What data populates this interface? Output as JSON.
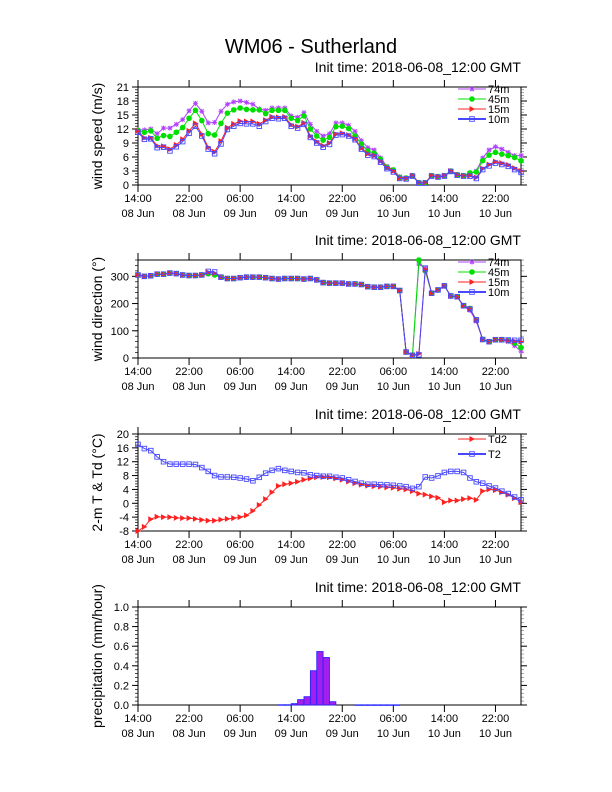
{
  "title": "WM06 - Sutherland",
  "times": [
    "2018-06-08 14:00",
    "2018-06-08 15:00",
    "2018-06-08 16:00",
    "2018-06-08 17:00",
    "2018-06-08 18:00",
    "2018-06-08 19:00",
    "2018-06-08 20:00",
    "2018-06-08 21:00",
    "2018-06-08 22:00",
    "2018-06-08 23:00",
    "2018-06-09 00:00",
    "2018-06-09 01:00",
    "2018-06-09 02:00",
    "2018-06-09 03:00",
    "2018-06-09 04:00",
    "2018-06-09 05:00",
    "2018-06-09 06:00",
    "2018-06-09 07:00",
    "2018-06-09 08:00",
    "2018-06-09 09:00",
    "2018-06-09 10:00",
    "2018-06-09 11:00",
    "2018-06-09 12:00",
    "2018-06-09 13:00",
    "2018-06-09 14:00",
    "2018-06-09 15:00",
    "2018-06-09 16:00",
    "2018-06-09 17:00",
    "2018-06-09 18:00",
    "2018-06-09 19:00",
    "2018-06-09 20:00",
    "2018-06-09 21:00",
    "2018-06-09 22:00",
    "2018-06-09 23:00",
    "2018-06-10 00:00",
    "2018-06-10 01:00",
    "2018-06-10 02:00",
    "2018-06-10 03:00",
    "2018-06-10 04:00",
    "2018-06-10 05:00",
    "2018-06-10 06:00",
    "2018-06-10 07:00",
    "2018-06-10 08:00",
    "2018-06-10 09:00",
    "2018-06-10 10:00",
    "2018-06-10 11:00",
    "2018-06-10 12:00",
    "2018-06-10 13:00",
    "2018-06-10 14:00",
    "2018-06-10 15:00",
    "2018-06-10 16:00",
    "2018-06-10 17:00",
    "2018-06-10 18:00",
    "2018-06-10 19:00",
    "2018-06-10 20:00",
    "2018-06-10 21:00",
    "2018-06-10 22:00",
    "2018-06-10 23:00",
    "2018-06-11 00:00",
    "2018-06-11 01:00",
    "2018-06-11 02:00"
  ],
  "x_ticks": [
    {
      "time": "14:00",
      "date": "08 Jun"
    },
    {
      "time": "22:00",
      "date": "08 Jun"
    },
    {
      "time": "06:00",
      "date": "09 Jun"
    },
    {
      "time": "14:00",
      "date": "09 Jun"
    },
    {
      "time": "22:00",
      "date": "09 Jun"
    },
    {
      "time": "06:00",
      "date": "10 Jun"
    },
    {
      "time": "14:00",
      "date": "10 Jun"
    },
    {
      "time": "22:00",
      "date": "10 Jun"
    }
  ],
  "chart_data": [
    {
      "type": "line",
      "title": "Init time: 2018-06-08_12:00 GMT",
      "ylabel": "wind speed (m/s)",
      "ylim": [
        0,
        21
      ],
      "yticks": [
        0,
        3,
        6,
        9,
        12,
        15,
        18,
        21
      ],
      "ytick_labels": [
        "0",
        "3",
        "6",
        "9",
        "12",
        "15",
        "18",
        "21"
      ],
      "legend": "top-right",
      "series": [
        {
          "name": "74m",
          "color": "#b040ff",
          "marker": "star",
          "values": [
            11.8,
            11.8,
            12.0,
            11.0,
            12.2,
            12.2,
            13.0,
            14.0,
            15.9,
            17.5,
            15.8,
            13.3,
            13.4,
            15.8,
            17.3,
            17.8,
            18.0,
            17.7,
            17.3,
            16.3,
            16.0,
            16.5,
            16.5,
            16.5,
            14.8,
            14.5,
            15.5,
            13.0,
            11.5,
            10.5,
            11.0,
            13.3,
            13.3,
            12.8,
            11.5,
            9.5,
            8.0,
            7.5,
            5.8,
            4.0,
            3.3,
            1.8,
            1.5,
            2.0,
            0.5,
            0.5,
            2.0,
            1.8,
            2.0,
            3.0,
            2.2,
            2.0,
            2.5,
            3.0,
            5.8,
            7.5,
            8.2,
            7.7,
            7.0,
            6.3,
            6.3
          ]
        },
        {
          "name": "45m",
          "color": "#00e000",
          "marker": "circle",
          "values": [
            11.7,
            11.3,
            11.6,
            10.0,
            10.6,
            10.4,
            11.3,
            12.3,
            14.3,
            16.0,
            13.8,
            11.0,
            10.7,
            13.2,
            15.4,
            16.1,
            16.5,
            16.2,
            16.1,
            16.1,
            15.3,
            16.0,
            16.0,
            16.0,
            14.3,
            13.8,
            14.8,
            12.0,
            10.5,
            9.6,
            10.2,
            12.5,
            12.6,
            12.1,
            10.5,
            8.8,
            7.3,
            6.8,
            5.5,
            3.8,
            3.2,
            1.6,
            1.5,
            2.0,
            0.5,
            0.5,
            2.0,
            1.8,
            2.0,
            3.0,
            2.2,
            2.0,
            2.6,
            2.8,
            5.2,
            6.4,
            7.0,
            6.6,
            6.3,
            5.9,
            5.2
          ]
        },
        {
          "name": "15m",
          "color": "#ff2020",
          "marker": "triangle",
          "values": [
            11.6,
            10.1,
            10.1,
            8.4,
            8.3,
            7.7,
            8.6,
            9.8,
            11.6,
            13.2,
            10.9,
            8.1,
            7.1,
            9.4,
            12.3,
            13.1,
            13.7,
            13.6,
            13.6,
            13.1,
            13.9,
            14.6,
            14.5,
            14.6,
            12.9,
            12.5,
            13.3,
            10.5,
            9.3,
            8.4,
            9.0,
            10.9,
            11.1,
            10.7,
            9.9,
            7.9,
            6.7,
            6.3,
            5.1,
            3.7,
            3.0,
            1.5,
            1.4,
            2.0,
            0.5,
            0.5,
            2.0,
            1.8,
            2.0,
            3.0,
            2.2,
            2.0,
            2.0,
            1.6,
            3.5,
            4.4,
            5.0,
            4.7,
            4.3,
            3.6,
            3.0
          ]
        },
        {
          "name": "10m",
          "color": "#4848ff",
          "marker": "square",
          "values": [
            11.3,
            9.8,
            9.9,
            8.0,
            8.1,
            7.3,
            8.2,
            9.3,
            11.1,
            12.6,
            10.5,
            7.7,
            6.7,
            8.8,
            11.9,
            12.6,
            13.2,
            13.1,
            13.1,
            12.6,
            13.6,
            14.3,
            14.2,
            14.3,
            12.6,
            12.2,
            13.0,
            10.2,
            9.0,
            8.1,
            8.7,
            10.7,
            10.8,
            10.5,
            9.7,
            7.7,
            6.4,
            6.1,
            4.9,
            3.5,
            2.8,
            1.4,
            1.3,
            1.9,
            0.4,
            0.4,
            1.9,
            1.7,
            1.9,
            2.9,
            2.1,
            1.9,
            1.9,
            1.4,
            3.3,
            4.1,
            4.7,
            4.4,
            4.0,
            3.3,
            2.7
          ]
        }
      ]
    },
    {
      "type": "line",
      "title": "Init time: 2018-06-08_12:00 GMT",
      "ylabel": "wind direction (°)",
      "ylim": [
        0,
        360
      ],
      "yticks": [
        0,
        100,
        200,
        300
      ],
      "ytick_labels": [
        "0",
        "100",
        "200",
        "300"
      ],
      "legend": "top-right",
      "series": [
        {
          "name": "74m",
          "color": "#b040ff",
          "marker": "star",
          "values": [
            305,
            300,
            302,
            308,
            308,
            312,
            310,
            305,
            303,
            303,
            305,
            308,
            305,
            297,
            292,
            292,
            295,
            297,
            297,
            297,
            295,
            292,
            290,
            292,
            292,
            292,
            290,
            292,
            287,
            277,
            275,
            275,
            275,
            272,
            272,
            270,
            262,
            260,
            260,
            263,
            263,
            248,
            22,
            10,
            345,
            330,
            238,
            250,
            265,
            226,
            225,
            190,
            175,
            135,
            68,
            60,
            66,
            67,
            60,
            45,
            25
          ]
        },
        {
          "name": "45m",
          "color": "#00e000",
          "marker": "circle",
          "values": [
            305,
            300,
            302,
            308,
            308,
            312,
            310,
            305,
            303,
            303,
            305,
            310,
            305,
            297,
            292,
            292,
            295,
            297,
            297,
            297,
            295,
            292,
            290,
            292,
            292,
            292,
            290,
            292,
            287,
            277,
            275,
            275,
            275,
            272,
            272,
            270,
            262,
            260,
            260,
            263,
            263,
            248,
            22,
            10,
            360,
            320,
            238,
            250,
            265,
            228,
            225,
            192,
            182,
            140,
            68,
            60,
            67,
            68,
            64,
            55,
            38
          ]
        },
        {
          "name": "15m",
          "color": "#ff2020",
          "marker": "triangle",
          "values": [
            305,
            300,
            302,
            308,
            308,
            312,
            310,
            305,
            303,
            303,
            305,
            315,
            312,
            297,
            292,
            292,
            295,
            297,
            297,
            297,
            295,
            292,
            290,
            292,
            292,
            292,
            290,
            292,
            287,
            277,
            275,
            275,
            275,
            272,
            272,
            270,
            262,
            260,
            260,
            263,
            263,
            248,
            22,
            10,
            15,
            325,
            238,
            250,
            265,
            228,
            225,
            192,
            180,
            140,
            68,
            60,
            67,
            67,
            64,
            62,
            60
          ]
        },
        {
          "name": "10m",
          "color": "#4848ff",
          "marker": "square",
          "values": [
            305,
            300,
            302,
            308,
            308,
            312,
            310,
            305,
            303,
            303,
            305,
            318,
            316,
            297,
            292,
            292,
            295,
            297,
            297,
            297,
            295,
            292,
            290,
            292,
            292,
            292,
            290,
            292,
            287,
            277,
            275,
            275,
            275,
            272,
            272,
            270,
            262,
            260,
            260,
            263,
            263,
            248,
            22,
            10,
            12,
            330,
            238,
            250,
            265,
            228,
            225,
            192,
            180,
            140,
            68,
            60,
            67,
            67,
            66,
            65,
            65
          ]
        }
      ]
    },
    {
      "type": "line",
      "title": "Init time: 2018-06-08_12:00 GMT",
      "ylabel": "2-m T & Td (°C)",
      "ylim": [
        -8,
        20
      ],
      "yticks": [
        -8,
        -4,
        0,
        4,
        8,
        12,
        16,
        20
      ],
      "ytick_labels": [
        "-8",
        "-4",
        "0",
        "4",
        "8",
        "12",
        "16",
        "20"
      ],
      "legend": "top-right",
      "series": [
        {
          "name": "Td2",
          "color": "#ff2020",
          "marker": "triangle",
          "values": [
            -8.0,
            -6.8,
            -4.6,
            -3.9,
            -4.0,
            -4.0,
            -4.2,
            -4.3,
            -4.3,
            -4.5,
            -4.8,
            -5.0,
            -5.0,
            -4.7,
            -4.5,
            -4.3,
            -4.0,
            -3.5,
            -2.2,
            -0.5,
            1.2,
            3.2,
            5.0,
            5.5,
            5.8,
            6.2,
            6.8,
            7.2,
            7.5,
            7.6,
            7.5,
            7.2,
            6.8,
            6.3,
            5.8,
            5.4,
            5.1,
            4.9,
            4.8,
            4.6,
            4.5,
            4.2,
            4.0,
            3.5,
            2.8,
            2.5,
            2.0,
            1.6,
            0.3,
            0.8,
            0.8,
            1.2,
            1.5,
            1.0,
            3.5,
            4.0,
            3.8,
            3.2,
            2.5,
            1.5,
            0.3
          ]
        },
        {
          "name": "T2",
          "color": "#4848ff",
          "marker": "square",
          "values": [
            17.0,
            15.8,
            15.2,
            13.4,
            12.0,
            11.3,
            11.3,
            11.3,
            11.3,
            11.2,
            10.3,
            9.2,
            8.0,
            7.6,
            7.6,
            7.5,
            7.3,
            7.0,
            6.5,
            7.5,
            8.7,
            9.5,
            10.0,
            9.5,
            9.2,
            8.9,
            8.8,
            8.2,
            8.0,
            7.8,
            7.8,
            7.5,
            7.3,
            6.8,
            6.3,
            5.8,
            5.5,
            5.5,
            5.4,
            5.3,
            5.2,
            5.0,
            4.8,
            4.3,
            4.8,
            7.6,
            7.3,
            7.9,
            8.9,
            9.2,
            9.2,
            8.9,
            7.3,
            6.2,
            5.8,
            5.0,
            4.4,
            3.5,
            2.8,
            1.8,
            1.0
          ]
        }
      ]
    },
    {
      "type": "bar",
      "title": "Init time: 2018-06-08_12:00 GMT",
      "ylabel": "precipitation (mm/hour)",
      "ylim": [
        0,
        1.0
      ],
      "yticks": [
        0,
        0.2,
        0.4,
        0.6,
        0.8,
        1.0
      ],
      "ytick_labels": [
        "0.0",
        "0.2",
        "0.4",
        "0.6",
        "0.8",
        "1.0"
      ],
      "series": [
        {
          "color": "#a020f0",
          "edge_color": "#2020ff",
          "values": [
            0,
            0,
            0,
            0,
            0,
            0,
            0,
            0,
            0,
            0,
            0,
            0,
            0,
            0,
            0,
            0,
            0,
            0,
            0,
            0,
            0,
            0,
            0.003,
            0.003,
            0.014,
            0.055,
            0.085,
            0.35,
            0.546,
            0.485,
            0.034,
            0,
            0,
            0,
            0.002,
            0.002,
            0.002,
            0.002,
            0.002,
            0.002,
            0.002,
            0,
            0,
            0,
            0,
            0,
            0,
            0,
            0,
            0,
            0,
            0,
            0,
            0,
            0,
            0,
            0,
            0,
            0,
            0,
            0
          ]
        }
      ]
    }
  ]
}
